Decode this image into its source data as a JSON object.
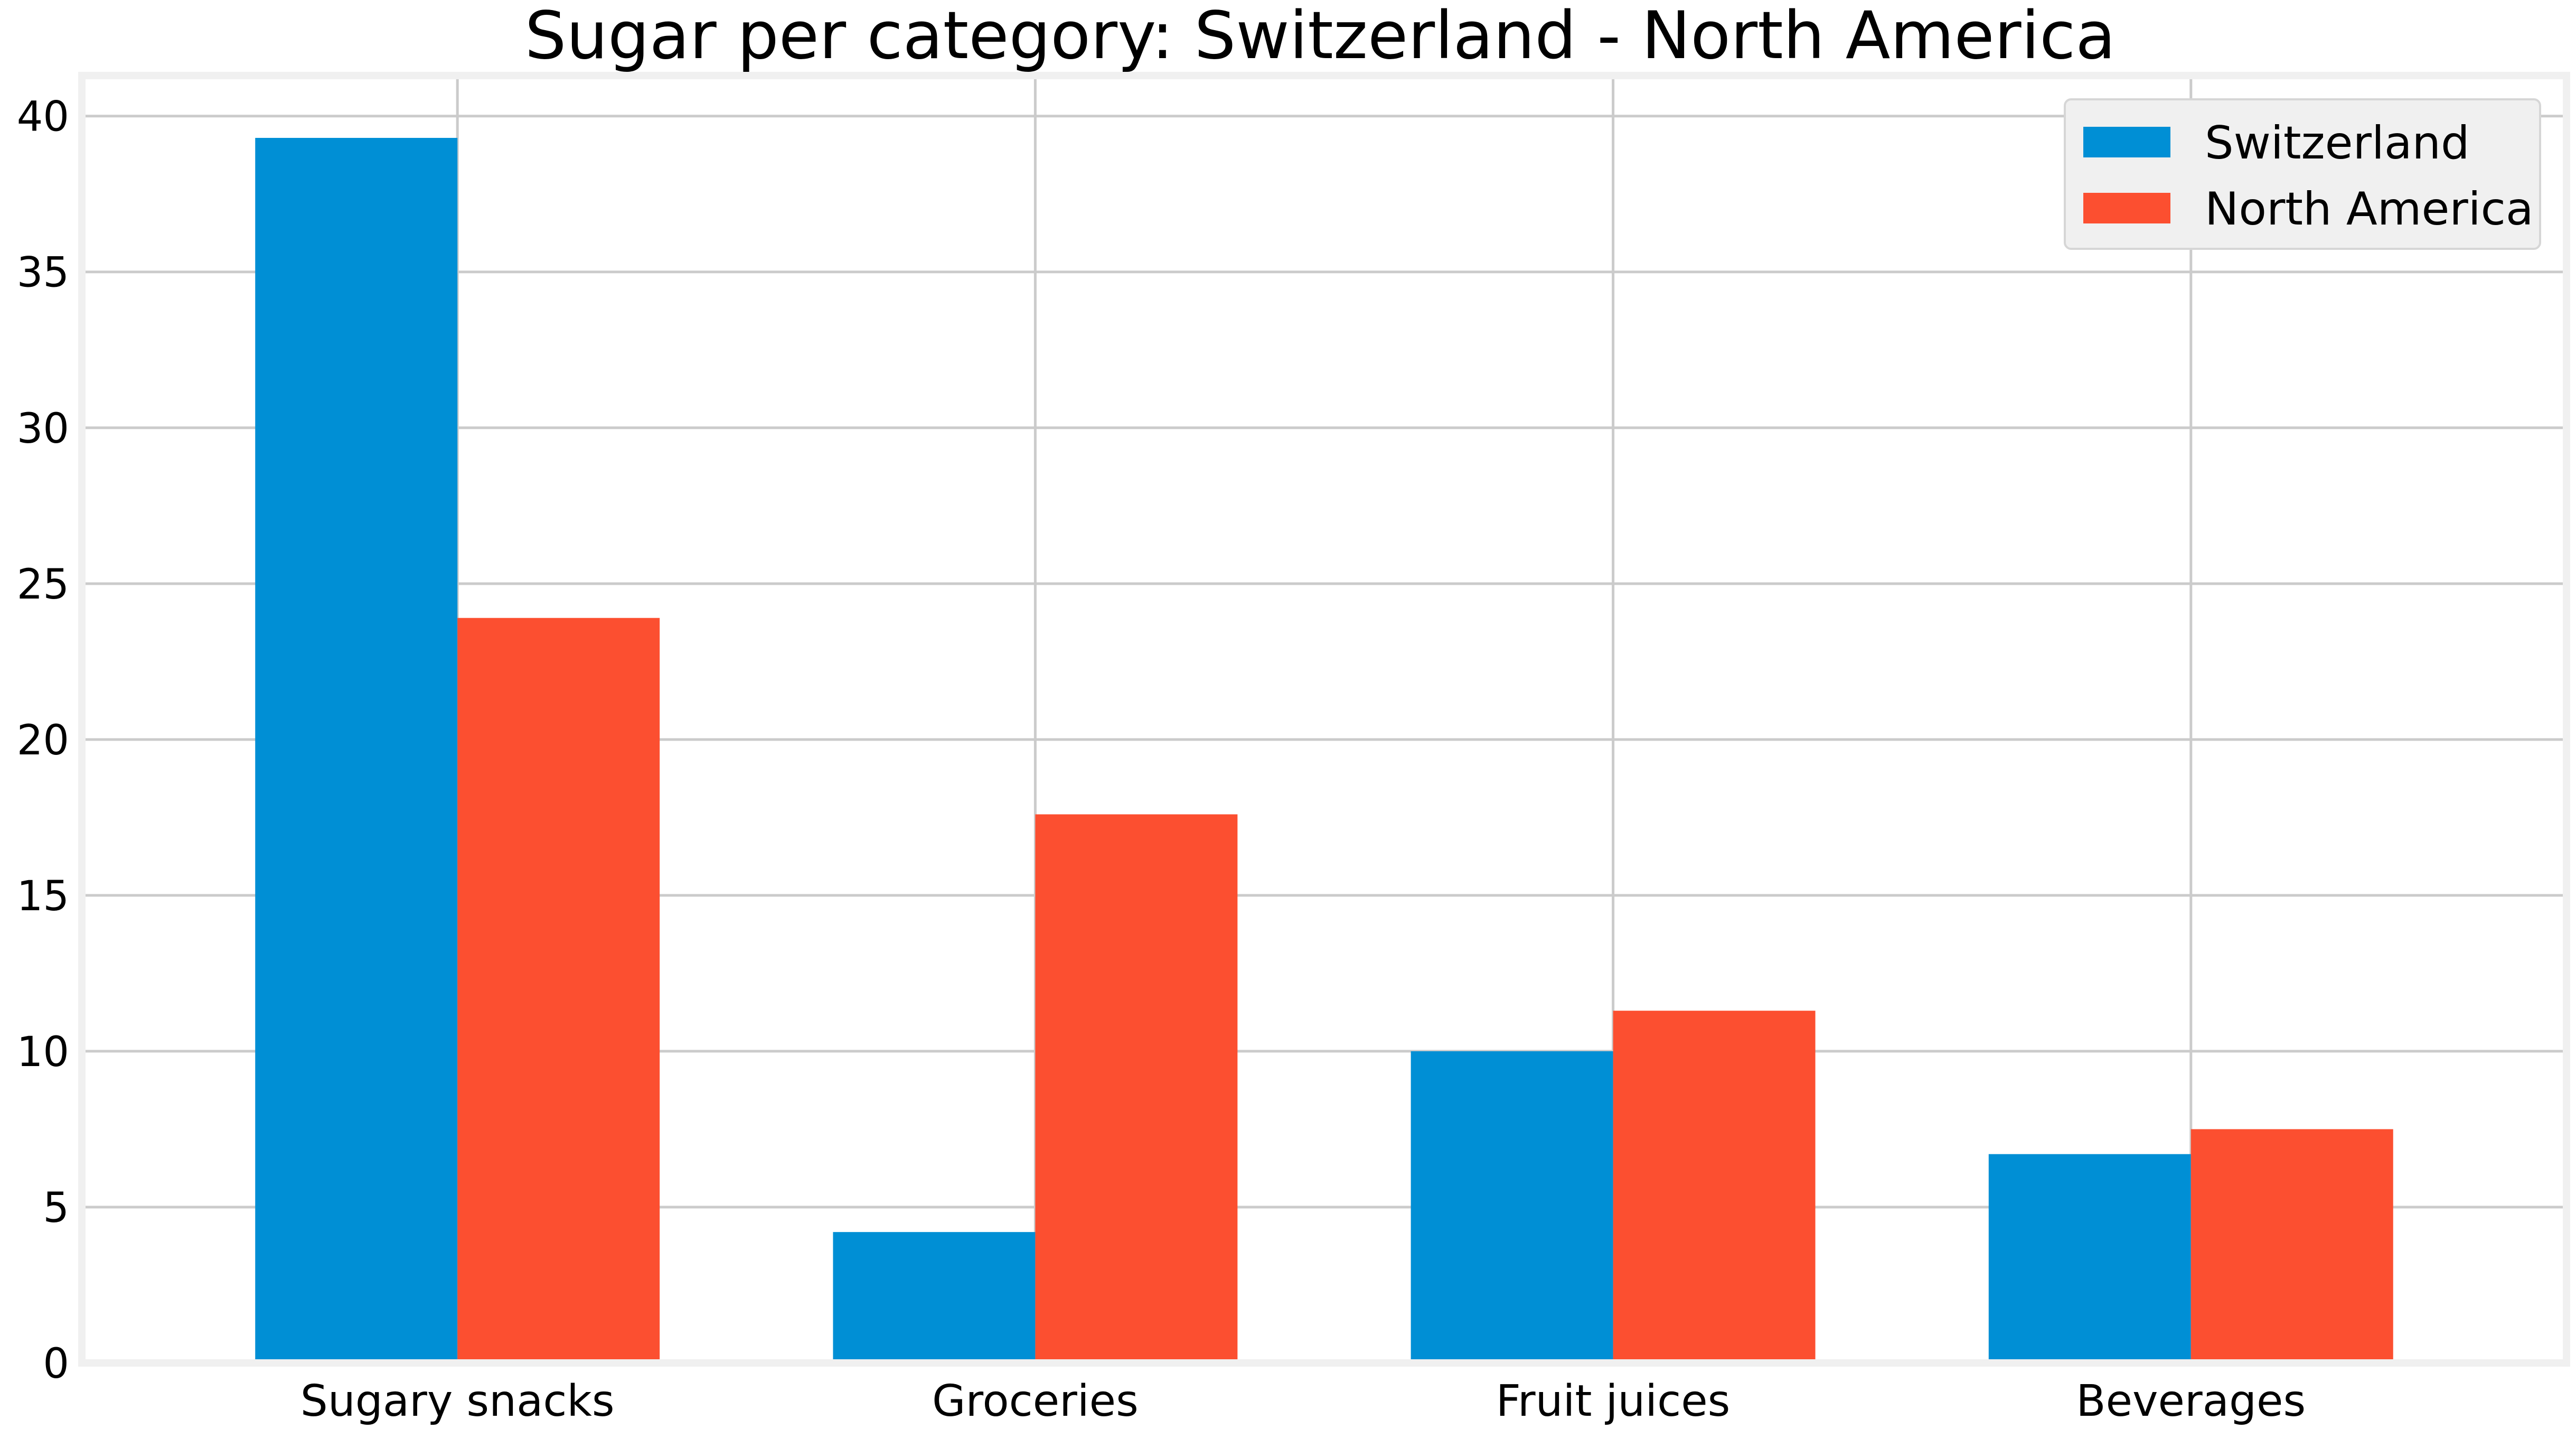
{
  "chart_data": {
    "type": "bar",
    "title": "Sugar per category: Switzerland - North America",
    "xlabel": "",
    "ylabel": "",
    "categories": [
      "Sugary snacks",
      "Groceries",
      "Fruit juices",
      "Beverages"
    ],
    "series": [
      {
        "name": "Switzerland",
        "color": "#008fd5",
        "values": [
          39.3,
          4.2,
          10.0,
          6.7
        ]
      },
      {
        "name": "North America",
        "color": "#fc4f30",
        "values": [
          23.9,
          17.6,
          11.3,
          7.5
        ]
      }
    ],
    "ylim": [
      0,
      41.3
    ],
    "yticks": [
      0,
      5,
      10,
      15,
      20,
      25,
      30,
      35,
      40
    ],
    "grid": true,
    "legend_position": "top-right",
    "style_colors": {
      "grid": "#cbcbcb",
      "frame": "#f0f0f0",
      "legend_background": "#f0f0f0",
      "text": "#000000"
    }
  }
}
